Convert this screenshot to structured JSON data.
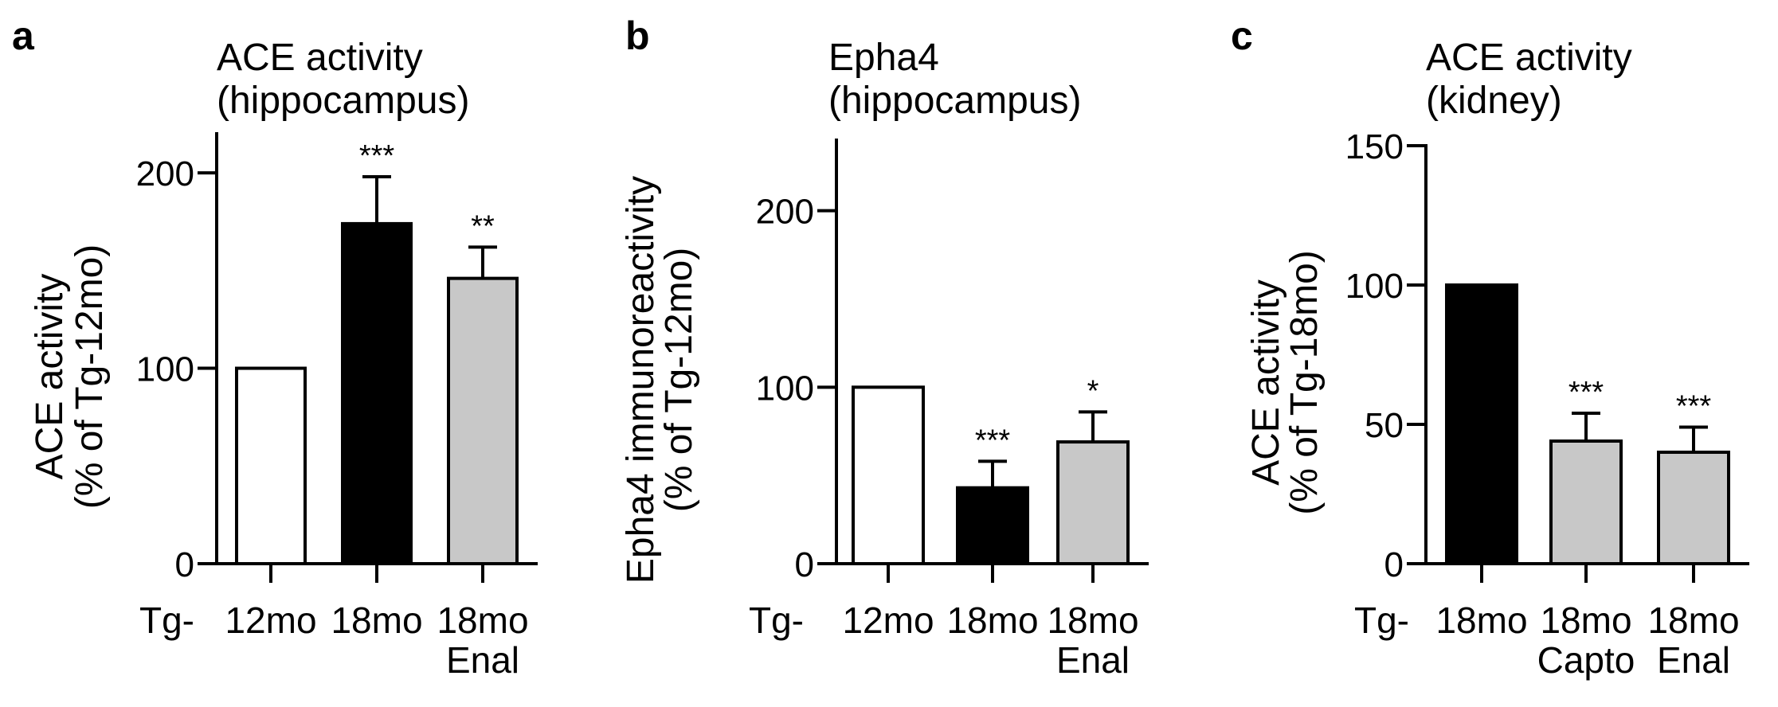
{
  "panels": [
    {
      "letter": "a",
      "title_lines": [
        "ACE activity",
        "(hippocampus)"
      ],
      "ylabel_lines": [
        "ACE activity",
        "(% of Tg-12mo)"
      ]
    },
    {
      "letter": "b",
      "title_lines": [
        "Epha4",
        "(hippocampus)"
      ],
      "ylabel_lines": [
        "Epha4 immunoreactivity",
        "(% of Tg-12mo)"
      ]
    },
    {
      "letter": "c",
      "title_lines": [
        "ACE activity",
        "(kidney)"
      ],
      "ylabel_lines": [
        "ACE activity",
        "(% of Tg-18mo)"
      ]
    }
  ],
  "chart_data": [
    {
      "type": "bar",
      "title": "ACE activity (hippocampus)",
      "ylabel": "ACE activity (% of Tg-12mo)",
      "categories": [
        "Tg-12mo",
        "18mo",
        "18mo Enal"
      ],
      "category_prefix": "Tg-",
      "category_lines": [
        [
          "12mo"
        ],
        [
          "18mo"
        ],
        [
          "18mo",
          "Enal"
        ]
      ],
      "values": [
        100,
        174,
        146
      ],
      "errors": [
        0,
        24,
        16
      ],
      "significance": [
        "",
        "***",
        "**"
      ],
      "bar_colors": [
        "#ffffff",
        "#000000",
        "#c8c8c8"
      ],
      "ylim": [
        0,
        220
      ],
      "yticks": [
        0,
        100,
        200
      ],
      "grid": false
    },
    {
      "type": "bar",
      "title": "Epha4 (hippocampus)",
      "ylabel": "Epha4 immunoreactivity (% of Tg-12mo)",
      "categories": [
        "Tg-12mo",
        "18mo",
        "18mo Enal"
      ],
      "category_prefix": "Tg-",
      "category_lines": [
        [
          "12mo"
        ],
        [
          "18mo"
        ],
        [
          "18mo",
          "Enal"
        ]
      ],
      "values": [
        100,
        43,
        69
      ],
      "errors": [
        0,
        15,
        17
      ],
      "significance": [
        "",
        "***",
        "*"
      ],
      "bar_colors": [
        "#ffffff",
        "#000000",
        "#c8c8c8"
      ],
      "ylim": [
        0,
        240
      ],
      "yticks": [
        0,
        100,
        200
      ],
      "grid": false
    },
    {
      "type": "bar",
      "title": "ACE activity (kidney)",
      "ylabel": "ACE activity (% of Tg-18mo)",
      "categories": [
        "Tg-18mo",
        "18mo Capto",
        "18mo Enal"
      ],
      "category_prefix": "Tg-",
      "category_lines": [
        [
          "18mo"
        ],
        [
          "18mo",
          "Capto"
        ],
        [
          "18mo",
          "Enal"
        ]
      ],
      "values": [
        100,
        44,
        40
      ],
      "errors": [
        0,
        10,
        9
      ],
      "significance": [
        "",
        "***",
        "***"
      ],
      "bar_colors": [
        "#000000",
        "#c8c8c8",
        "#c8c8c8"
      ],
      "ylim": [
        0,
        150
      ],
      "yticks": [
        0,
        50,
        100,
        150
      ],
      "grid": false
    }
  ]
}
